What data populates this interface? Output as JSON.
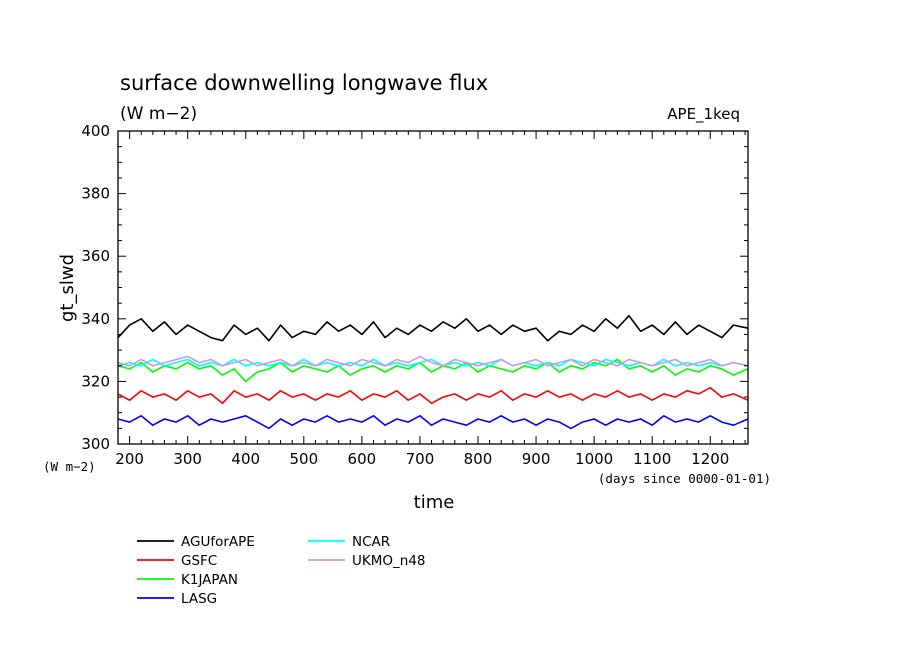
{
  "chart_data": {
    "type": "line",
    "title": "surface downwelling longwave flux",
    "subtitle": "(W m−2)",
    "tag": "APE_1keq",
    "xlabel": "time",
    "x_unit_label": "(days since 0000-01-01)",
    "ylabel": "gt_slwd",
    "y_unit_label": "(W m−2)",
    "xlim": [
      180,
      1265
    ],
    "ylim": [
      300,
      400
    ],
    "x_ticks": [
      200,
      300,
      400,
      500,
      600,
      700,
      800,
      900,
      1000,
      1100,
      1200
    ],
    "y_ticks": [
      300,
      320,
      340,
      360,
      380,
      400
    ],
    "legend_position": "bottom-left, below plot",
    "series": [
      {
        "name": "AGUforAPE",
        "color": "#000000",
        "x": [
          180,
          200,
          220,
          240,
          260,
          280,
          300,
          320,
          340,
          360,
          380,
          400,
          420,
          440,
          460,
          480,
          500,
          520,
          540,
          560,
          580,
          600,
          620,
          640,
          660,
          680,
          700,
          720,
          740,
          760,
          780,
          800,
          820,
          840,
          860,
          880,
          900,
          920,
          940,
          960,
          980,
          1000,
          1020,
          1040,
          1060,
          1080,
          1100,
          1120,
          1140,
          1160,
          1180,
          1200,
          1220,
          1240,
          1265
        ],
        "values": [
          334,
          338,
          340,
          336,
          339,
          335,
          338,
          336,
          334,
          333,
          338,
          335,
          337,
          333,
          338,
          334,
          336,
          335,
          339,
          336,
          338,
          335,
          339,
          334,
          337,
          335,
          338,
          336,
          339,
          337,
          340,
          336,
          338,
          335,
          338,
          336,
          337,
          333,
          336,
          335,
          338,
          336,
          340,
          337,
          341,
          336,
          338,
          335,
          339,
          335,
          338,
          336,
          334,
          338,
          337
        ]
      },
      {
        "name": "GSFC",
        "color": "#ff0000",
        "x": [
          180,
          200,
          220,
          240,
          260,
          280,
          300,
          320,
          340,
          360,
          380,
          400,
          420,
          440,
          460,
          480,
          500,
          520,
          540,
          560,
          580,
          600,
          620,
          640,
          660,
          680,
          700,
          720,
          740,
          760,
          780,
          800,
          820,
          840,
          860,
          880,
          900,
          920,
          940,
          960,
          980,
          1000,
          1020,
          1040,
          1060,
          1080,
          1100,
          1120,
          1140,
          1160,
          1180,
          1200,
          1220,
          1240,
          1265
        ],
        "values": [
          316,
          314,
          317,
          315,
          316,
          314,
          317,
          315,
          316,
          313,
          317,
          315,
          316,
          314,
          317,
          315,
          316,
          314,
          316,
          315,
          317,
          314,
          316,
          315,
          317,
          314,
          316,
          313,
          315,
          316,
          314,
          316,
          315,
          317,
          314,
          316,
          315,
          317,
          315,
          316,
          314,
          316,
          315,
          317,
          315,
          316,
          314,
          316,
          315,
          317,
          316,
          318,
          315,
          316,
          314
        ]
      },
      {
        "name": "K1JAPAN",
        "color": "#00ff00",
        "x": [
          180,
          200,
          220,
          240,
          260,
          280,
          300,
          320,
          340,
          360,
          380,
          400,
          420,
          440,
          460,
          480,
          500,
          520,
          540,
          560,
          580,
          600,
          620,
          640,
          660,
          680,
          700,
          720,
          740,
          760,
          780,
          800,
          820,
          840,
          860,
          880,
          900,
          920,
          940,
          960,
          980,
          1000,
          1020,
          1040,
          1060,
          1080,
          1100,
          1120,
          1140,
          1160,
          1180,
          1200,
          1220,
          1240,
          1265
        ],
        "values": [
          325,
          324,
          326,
          323,
          325,
          324,
          326,
          324,
          325,
          322,
          324,
          320,
          323,
          324,
          326,
          323,
          325,
          324,
          323,
          325,
          322,
          324,
          325,
          323,
          325,
          324,
          326,
          323,
          325,
          324,
          326,
          323,
          325,
          324,
          323,
          325,
          324,
          326,
          323,
          325,
          324,
          326,
          325,
          327,
          324,
          325,
          323,
          325,
          322,
          324,
          323,
          325,
          324,
          322,
          324
        ]
      },
      {
        "name": "LASG",
        "color": "#0000ff",
        "x": [
          180,
          200,
          220,
          240,
          260,
          280,
          300,
          320,
          340,
          360,
          380,
          400,
          420,
          440,
          460,
          480,
          500,
          520,
          540,
          560,
          580,
          600,
          620,
          640,
          660,
          680,
          700,
          720,
          740,
          760,
          780,
          800,
          820,
          840,
          860,
          880,
          900,
          920,
          940,
          960,
          980,
          1000,
          1020,
          1040,
          1060,
          1080,
          1100,
          1120,
          1140,
          1160,
          1180,
          1200,
          1220,
          1240,
          1265
        ],
        "values": [
          308,
          307,
          309,
          306,
          308,
          307,
          309,
          306,
          308,
          307,
          308,
          309,
          307,
          305,
          308,
          306,
          308,
          307,
          309,
          307,
          308,
          307,
          309,
          306,
          308,
          307,
          309,
          306,
          308,
          307,
          306,
          308,
          307,
          309,
          307,
          308,
          306,
          308,
          307,
          305,
          307,
          308,
          306,
          308,
          307,
          308,
          306,
          309,
          307,
          308,
          307,
          309,
          307,
          306,
          308
        ]
      },
      {
        "name": "NCAR",
        "color": "#00ffff",
        "x": [
          180,
          200,
          220,
          240,
          260,
          280,
          300,
          320,
          340,
          360,
          380,
          400,
          420,
          440,
          460,
          480,
          500,
          520,
          540,
          560,
          580,
          600,
          620,
          640,
          660,
          680,
          700,
          720,
          740,
          760,
          780,
          800,
          820,
          840,
          860,
          880,
          900,
          920,
          940,
          960,
          980,
          1000,
          1020,
          1040,
          1060,
          1080,
          1100,
          1120,
          1140,
          1160,
          1180,
          1200,
          1220,
          1240,
          1265
        ],
        "values": [
          325,
          326,
          325,
          327,
          325,
          326,
          327,
          325,
          326,
          325,
          327,
          325,
          326,
          325,
          326,
          325,
          327,
          325,
          326,
          325,
          326,
          325,
          327,
          325,
          326,
          325,
          326,
          327,
          325,
          326,
          325,
          326,
          325,
          327,
          325,
          326,
          325,
          326,
          325,
          327,
          326,
          325,
          327,
          326,
          325,
          326,
          325,
          327,
          325,
          326,
          325,
          326,
          325,
          326,
          325
        ]
      },
      {
        "name": "UKMO_n48",
        "color": "#cc99dd",
        "x": [
          180,
          200,
          220,
          240,
          260,
          280,
          300,
          320,
          340,
          360,
          380,
          400,
          420,
          440,
          460,
          480,
          500,
          520,
          540,
          560,
          580,
          600,
          620,
          640,
          660,
          680,
          700,
          720,
          740,
          760,
          780,
          800,
          820,
          840,
          860,
          880,
          900,
          920,
          940,
          960,
          980,
          1000,
          1020,
          1040,
          1060,
          1080,
          1100,
          1120,
          1140,
          1160,
          1180,
          1200,
          1220,
          1240,
          1265
        ],
        "values": [
          326,
          325,
          327,
          325,
          326,
          327,
          328,
          326,
          327,
          325,
          326,
          327,
          325,
          326,
          327,
          325,
          326,
          325,
          327,
          326,
          325,
          327,
          326,
          325,
          327,
          326,
          328,
          326,
          325,
          327,
          326,
          325,
          326,
          327,
          325,
          326,
          327,
          325,
          326,
          327,
          325,
          327,
          326,
          325,
          327,
          326,
          325,
          326,
          327,
          325,
          326,
          327,
          325,
          326,
          325
        ]
      }
    ]
  }
}
